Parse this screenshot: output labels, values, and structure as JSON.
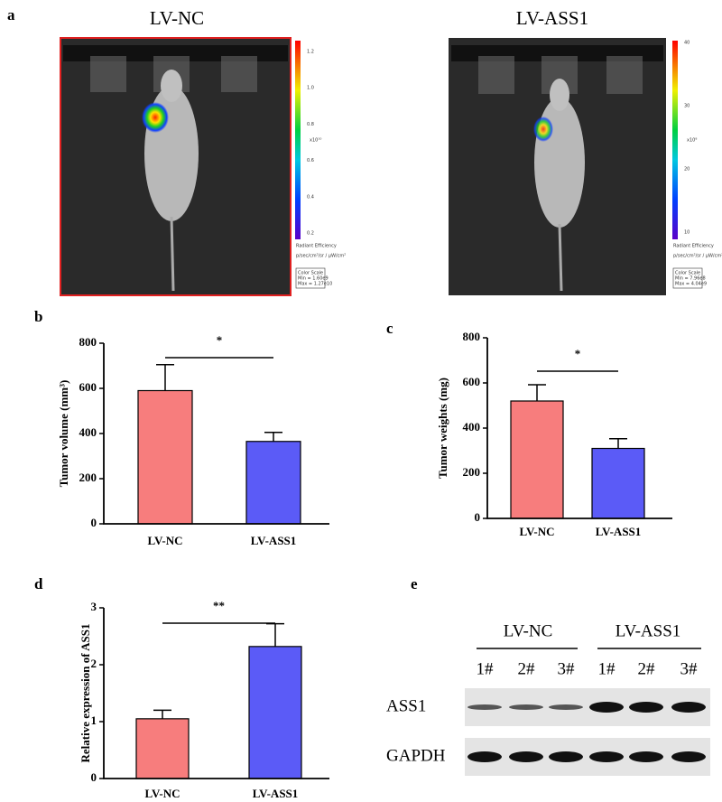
{
  "figure": {
    "panel_labels": [
      "a",
      "b",
      "c",
      "d",
      "e"
    ],
    "imaging": [
      {
        "title": "LV-NC",
        "colorbar_ticks": [
          "1.2",
          "1.0",
          "0.8",
          "0.6",
          "0.4",
          "0.2"
        ],
        "exponent": "x10¹⁰",
        "unit_title": "Radiant Efficiency",
        "unit": "p/sec/cm²/sr / μW/cm²",
        "scale_box": [
          "Color Scale",
          "Min = 1.60e9",
          "Max = 1.27e10"
        ]
      },
      {
        "title": "LV-ASS1",
        "colorbar_ticks": [
          "40",
          "30",
          "20",
          "10"
        ],
        "exponent": "x10⁸",
        "unit_title": "Radiant Efficiency",
        "unit": "p/sec/cm²/sr / μW/cm²",
        "scale_box": [
          "Color Scale",
          "Min = 7.96e8",
          "Max = 4.04e9"
        ]
      }
    ],
    "blot": {
      "groups": [
        "LV-NC",
        "LV-ASS1"
      ],
      "lanes": [
        "1#",
        "2#",
        "3#",
        "1#",
        "2#",
        "3#"
      ],
      "rows": [
        "ASS1",
        "GAPDH"
      ]
    }
  },
  "chart_data": [
    {
      "type": "bar",
      "ylabel": "Tumor volume (mm³)",
      "categories": [
        "LV-NC",
        "LV-ASS1"
      ],
      "values": [
        590,
        365
      ],
      "errors": [
        115,
        40
      ],
      "colors": [
        "#f77d7d",
        "#5b5bf7"
      ],
      "ylim": [
        0,
        800
      ],
      "yticks": [
        0,
        200,
        400,
        600,
        800
      ],
      "significance": "*"
    },
    {
      "type": "bar",
      "ylabel": "Tumor weights (mg)",
      "categories": [
        "LV-NC",
        "LV-ASS1"
      ],
      "values": [
        520,
        310
      ],
      "errors": [
        72,
        43
      ],
      "colors": [
        "#f77d7d",
        "#5b5bf7"
      ],
      "ylim": [
        0,
        800
      ],
      "yticks": [
        0,
        200,
        400,
        600,
        800
      ],
      "significance": "*"
    },
    {
      "type": "bar",
      "ylabel": "Relative expression of ASS1",
      "categories": [
        "LV-NC",
        "LV-ASS1"
      ],
      "values": [
        1.05,
        2.32
      ],
      "errors": [
        0.15,
        0.4
      ],
      "colors": [
        "#f77d7d",
        "#5b5bf7"
      ],
      "ylim": [
        0,
        3
      ],
      "yticks": [
        0,
        1,
        2,
        3
      ],
      "significance": "**"
    }
  ]
}
